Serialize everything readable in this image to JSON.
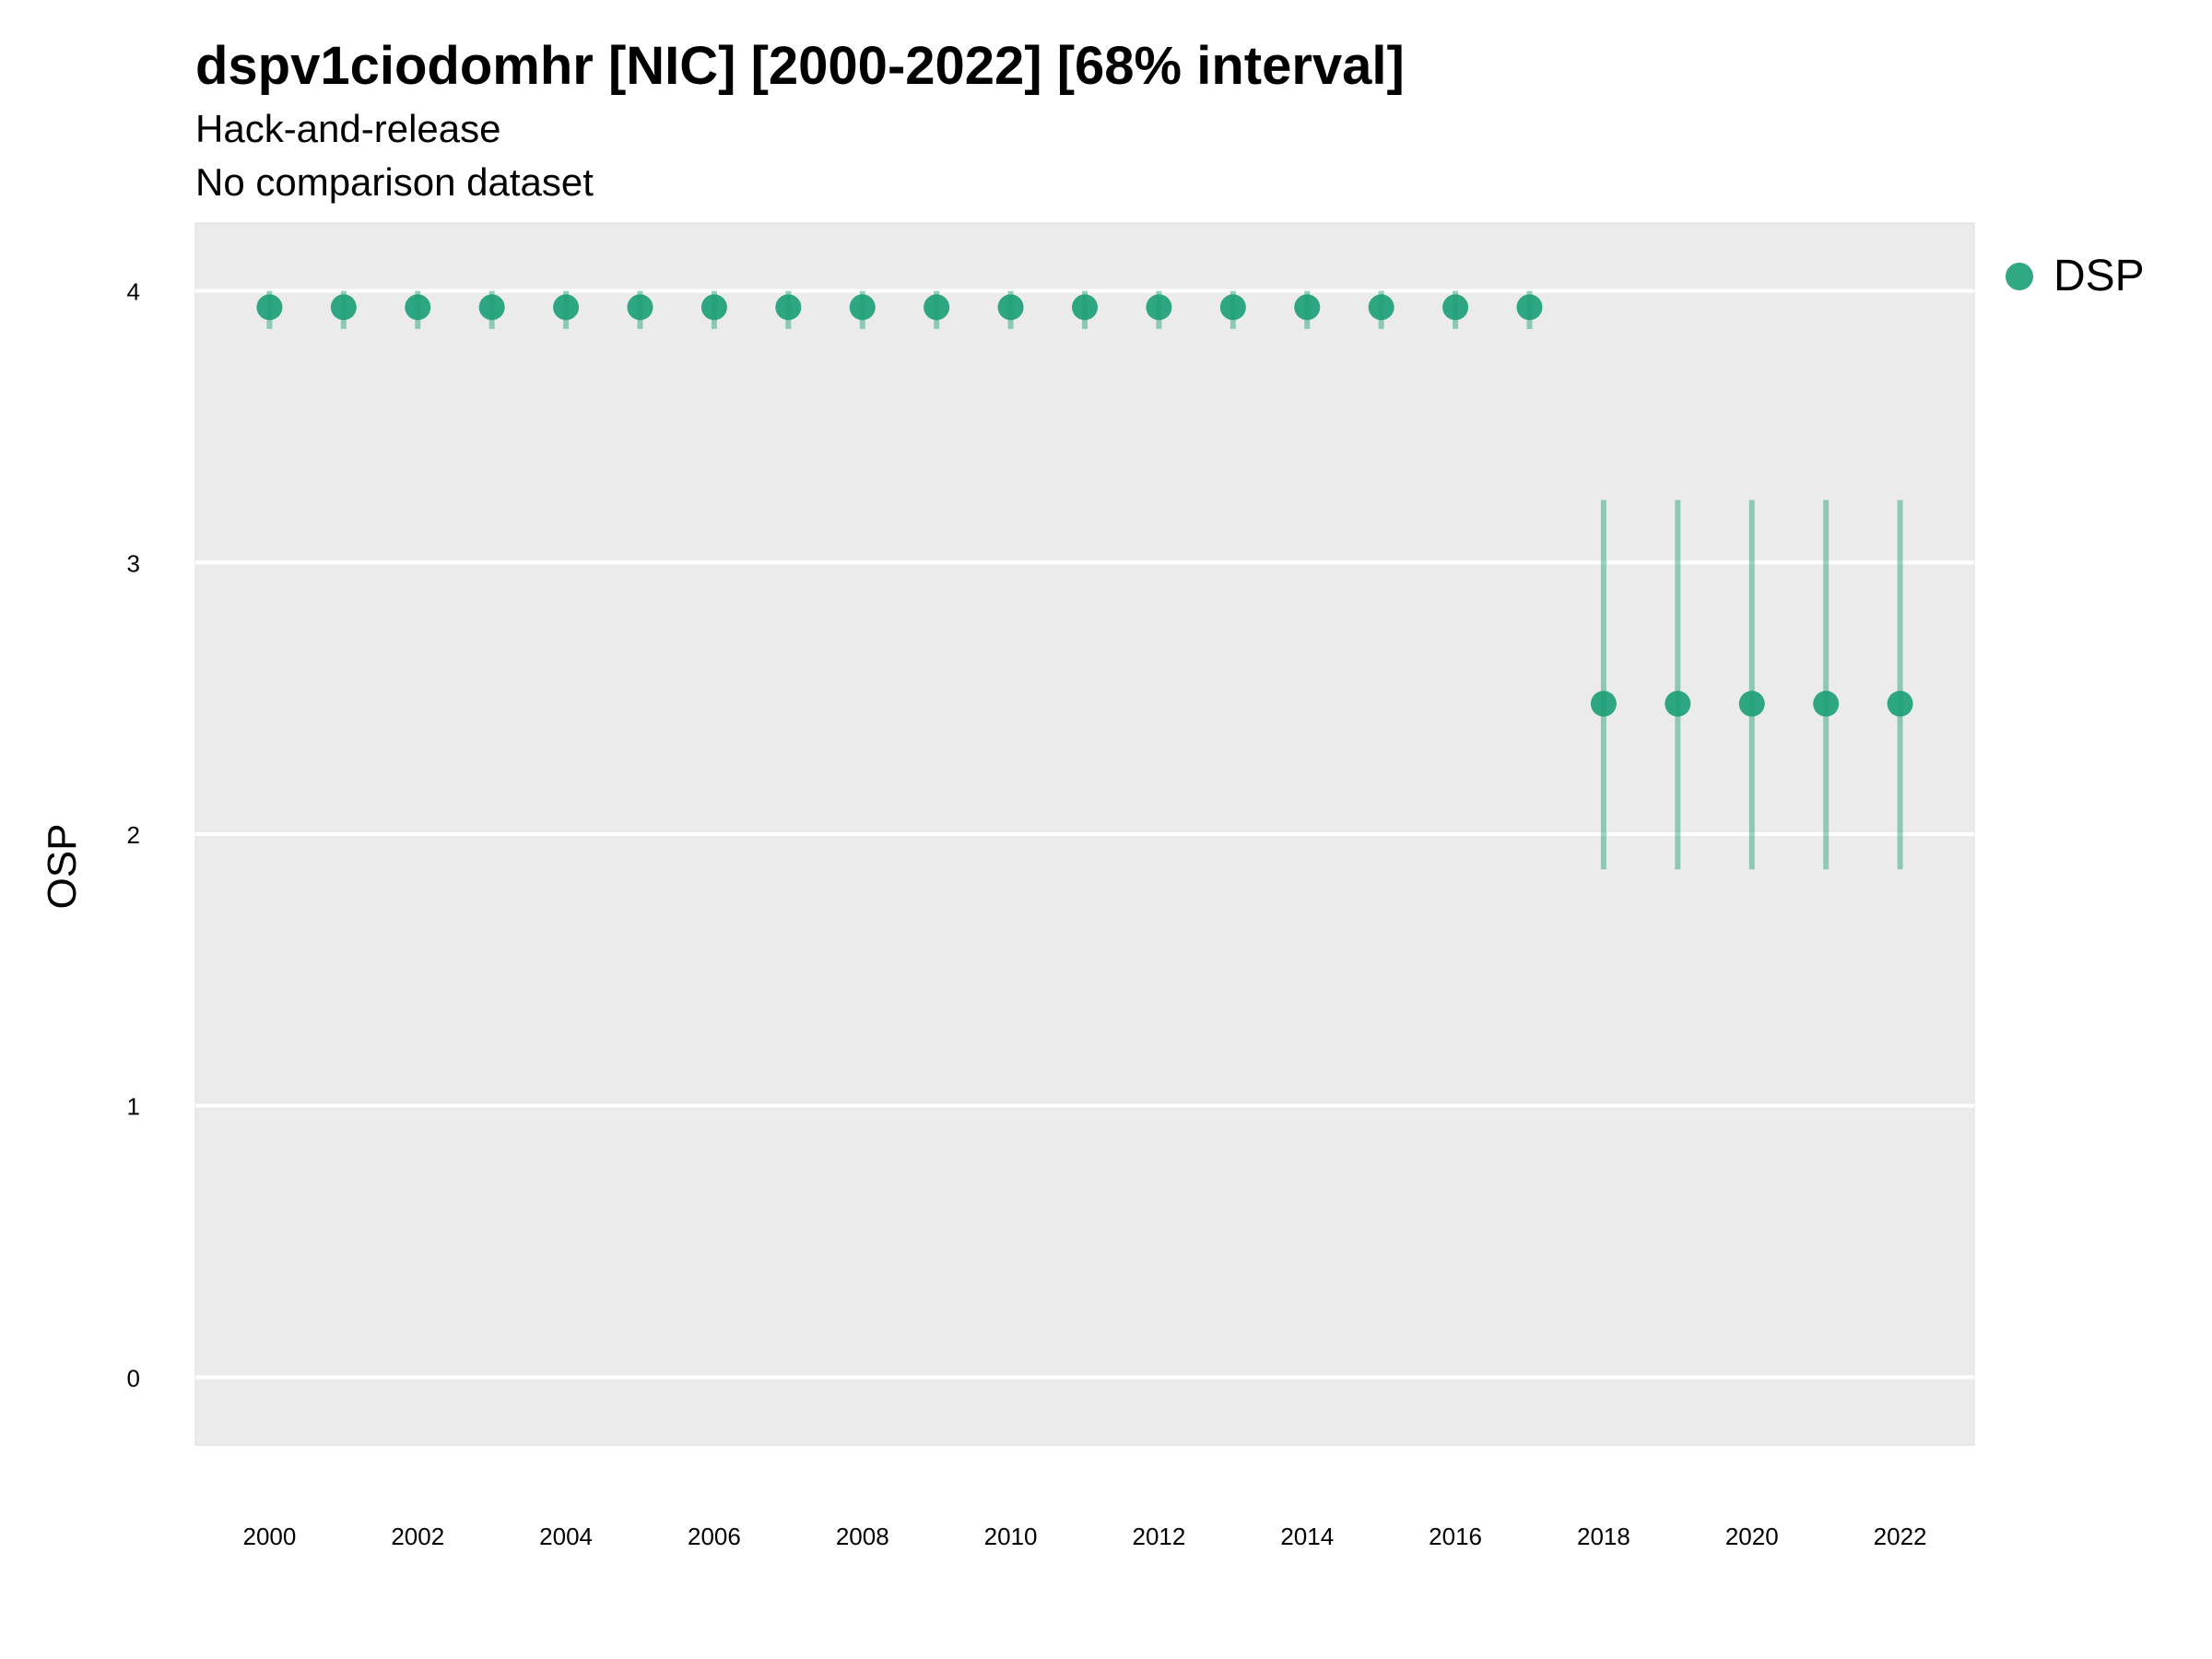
{
  "chart_data": {
    "type": "scatter",
    "title": "dspv1ciodomhr [NIC] [2000-2022] [68% interval]",
    "subtitle": [
      "Hack-and-release",
      "No comparison dataset"
    ],
    "xlabel": "",
    "ylabel": "OSP",
    "xlim": [
      1999,
      2023
    ],
    "ylim": [
      -0.25,
      4.25
    ],
    "x_ticks": [
      "2000",
      "2002",
      "2004",
      "2006",
      "2008",
      "2010",
      "2012",
      "2014",
      "2016",
      "2018",
      "2020",
      "2022"
    ],
    "y_ticks": [
      "0",
      "1",
      "2",
      "3",
      "4"
    ],
    "grid": true,
    "legend_position": "right",
    "series": [
      {
        "name": "DSP",
        "color": "#1b9e77",
        "x": [
          2000,
          2001,
          2002,
          2003,
          2004,
          2005,
          2006,
          2007,
          2008,
          2009,
          2010,
          2011,
          2012,
          2013,
          2014,
          2015,
          2016,
          2017,
          2018,
          2019,
          2020,
          2021,
          2022
        ],
        "y": [
          3.94,
          3.94,
          3.94,
          3.94,
          3.94,
          3.94,
          3.94,
          3.94,
          3.94,
          3.94,
          3.94,
          3.94,
          3.94,
          3.94,
          3.94,
          3.94,
          3.94,
          3.94,
          2.48,
          2.48,
          2.48,
          2.48,
          2.48
        ],
        "lower": [
          3.86,
          3.86,
          3.86,
          3.86,
          3.86,
          3.86,
          3.86,
          3.86,
          3.86,
          3.86,
          3.86,
          3.86,
          3.86,
          3.86,
          3.86,
          3.86,
          3.86,
          3.86,
          1.87,
          1.87,
          1.87,
          1.87,
          1.87
        ],
        "upper": [
          4.0,
          4.0,
          4.0,
          4.0,
          4.0,
          4.0,
          4.0,
          4.0,
          4.0,
          4.0,
          4.0,
          4.0,
          4.0,
          4.0,
          4.0,
          4.0,
          4.0,
          4.0,
          3.23,
          3.23,
          3.23,
          3.23,
          3.23
        ]
      }
    ]
  }
}
